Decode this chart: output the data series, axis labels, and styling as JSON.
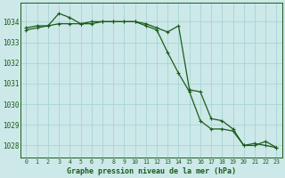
{
  "title": "Graphe pression niveau de la mer (hPa)",
  "background_color": "#cce8e8",
  "grid_color": "#aad4d4",
  "line_color": "#1a5c1a",
  "xlim": [
    -0.5,
    23.5
  ],
  "ylim": [
    1027.4,
    1034.9
  ],
  "yticks": [
    1028,
    1029,
    1030,
    1031,
    1032,
    1033,
    1034
  ],
  "xticks": [
    0,
    1,
    2,
    3,
    4,
    5,
    6,
    7,
    8,
    9,
    10,
    11,
    12,
    13,
    14,
    15,
    16,
    17,
    18,
    19,
    20,
    21,
    22,
    23
  ],
  "series1_x": [
    0,
    1,
    2,
    3,
    4,
    5,
    6,
    7,
    8,
    9,
    10,
    11,
    12,
    13,
    14,
    15,
    16,
    17,
    18,
    19,
    20,
    21,
    22,
    23
  ],
  "series1_y": [
    1033.7,
    1033.8,
    1033.8,
    1034.4,
    1034.2,
    1033.9,
    1033.9,
    1034.0,
    1034.0,
    1034.0,
    1034.0,
    1033.8,
    1033.6,
    1032.5,
    1031.5,
    1030.6,
    1029.2,
    1028.8,
    1028.8,
    1028.7,
    1028.0,
    1028.1,
    1028.0,
    1027.9
  ],
  "series2_x": [
    0,
    1,
    2,
    3,
    4,
    5,
    6,
    7,
    8,
    9,
    10,
    11,
    12,
    13,
    14,
    15,
    16,
    17,
    18,
    19,
    20,
    21,
    22,
    23
  ],
  "series2_y": [
    1033.6,
    1033.7,
    1033.8,
    1033.9,
    1033.9,
    1033.9,
    1034.0,
    1034.0,
    1034.0,
    1034.0,
    1034.0,
    1033.9,
    1033.7,
    1033.5,
    1033.8,
    1030.7,
    1030.6,
    1029.3,
    1029.2,
    1028.8,
    1028.0,
    1028.0,
    1028.2,
    1027.9
  ]
}
